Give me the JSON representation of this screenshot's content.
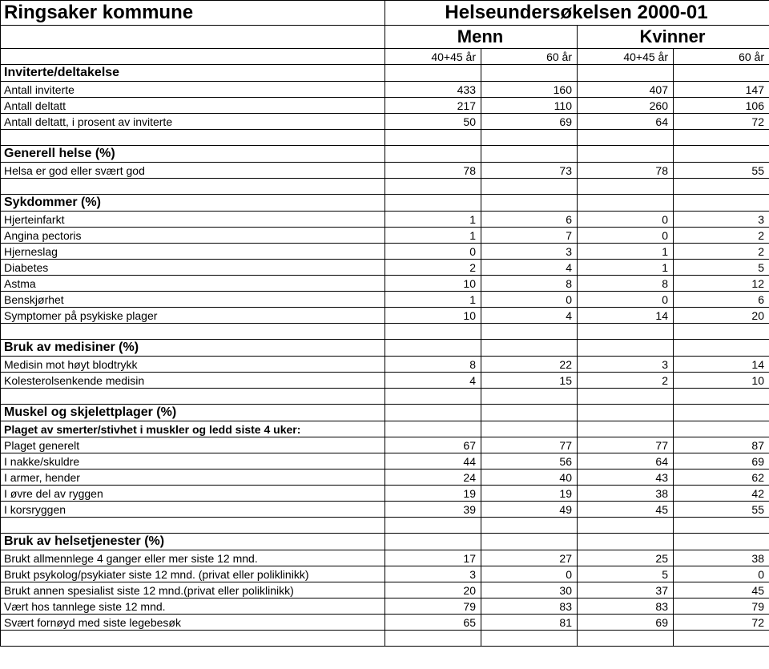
{
  "header": {
    "municipality": "Ringsaker kommune",
    "study_title": "Helseundersøkelsen  2000-01",
    "gender_men": "Menn",
    "gender_women": "Kvinner",
    "col1": "40+45 år",
    "col2": "60 år",
    "col3": "40+45 år",
    "col4": "60 år"
  },
  "sections": [
    {
      "title": "Inviterte/deltakelse",
      "rows": [
        {
          "label": "Antall inviterte",
          "v": [
            433,
            160,
            407,
            147
          ]
        },
        {
          "label": "Antall deltatt",
          "v": [
            217,
            110,
            260,
            106
          ]
        },
        {
          "label": "Antall deltatt, i prosent av inviterte",
          "v": [
            50,
            69,
            64,
            72
          ]
        }
      ]
    },
    {
      "title": "Generell helse  (%)",
      "rows": [
        {
          "label": "Helsa er god eller svært god",
          "v": [
            78,
            73,
            78,
            55
          ]
        }
      ]
    },
    {
      "title": "Sykdommer  (%)",
      "rows": [
        {
          "label": "Hjerteinfarkt",
          "v": [
            1,
            6,
            0,
            3
          ]
        },
        {
          "label": "Angina pectoris",
          "v": [
            1,
            7,
            0,
            2
          ]
        },
        {
          "label": "Hjerneslag",
          "v": [
            0,
            3,
            1,
            2
          ]
        },
        {
          "label": "Diabetes",
          "v": [
            2,
            4,
            1,
            5
          ]
        },
        {
          "label": "Astma",
          "v": [
            10,
            8,
            8,
            12
          ]
        },
        {
          "label": "Benskjørhet",
          "v": [
            1,
            0,
            0,
            6
          ]
        },
        {
          "label": "Symptomer på psykiske plager",
          "v": [
            10,
            4,
            14,
            20
          ]
        }
      ]
    },
    {
      "title": "Bruk av medisiner  (%)",
      "rows": [
        {
          "label": "Medisin mot høyt blodtrykk",
          "v": [
            8,
            22,
            3,
            14
          ]
        },
        {
          "label": "Kolesterolsenkende medisin",
          "v": [
            4,
            15,
            2,
            10
          ]
        }
      ]
    },
    {
      "title": "Muskel og skjelettplager  (%)",
      "sub": "Plaget av smerter/stivhet i muskler og ledd siste 4 uker:",
      "rows": [
        {
          "label": "Plaget generelt",
          "v": [
            67,
            77,
            77,
            87
          ]
        },
        {
          "label": "I nakke/skuldre",
          "v": [
            44,
            56,
            64,
            69
          ]
        },
        {
          "label": "I armer, hender",
          "v": [
            24,
            40,
            43,
            62
          ]
        },
        {
          "label": "I øvre del av ryggen",
          "v": [
            19,
            19,
            38,
            42
          ]
        },
        {
          "label": "I korsryggen",
          "v": [
            39,
            49,
            45,
            55
          ]
        }
      ]
    },
    {
      "title": "Bruk av helsetjenester  (%)",
      "rows": [
        {
          "label": "Brukt allmennlege 4 ganger eller mer siste 12 mnd.",
          "v": [
            17,
            27,
            25,
            38
          ]
        },
        {
          "label": "Brukt psykolog/psykiater siste 12 mnd. (privat eller poliklinikk)",
          "v": [
            3,
            0,
            5,
            0
          ]
        },
        {
          "label": "Brukt annen spesialist siste 12 mnd.(privat eller poliklinikk)",
          "v": [
            20,
            30,
            37,
            45
          ]
        },
        {
          "label": "Vært hos tannlege siste 12 mnd.",
          "v": [
            79,
            83,
            83,
            79
          ]
        },
        {
          "label": "Svært fornøyd med siste legebesøk",
          "v": [
            65,
            81,
            69,
            72
          ]
        }
      ]
    }
  ]
}
